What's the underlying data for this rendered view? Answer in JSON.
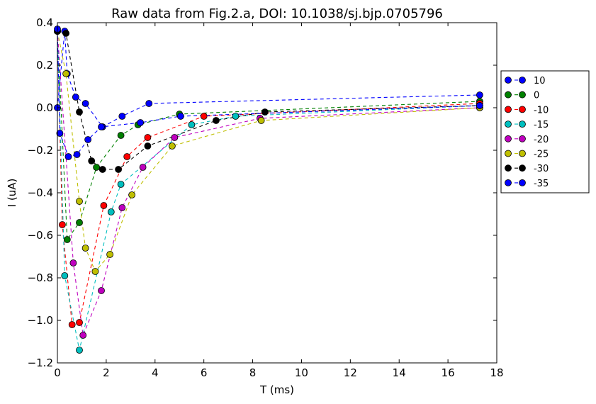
{
  "chart_data": {
    "type": "line",
    "title": "Raw data from Fig.2.a, DOI: 10.1038/sj.bjp.0705796",
    "xlabel": "T (ms)",
    "ylabel": "I (uA)",
    "xlim": [
      0,
      18
    ],
    "ylim": [
      -1.2,
      0.4
    ],
    "xticks": [
      0,
      2,
      4,
      6,
      8,
      10,
      12,
      14,
      16,
      18
    ],
    "yticks": [
      0.4,
      0.2,
      0.0,
      -0.2,
      -0.4,
      -0.6,
      -0.8,
      -1.0,
      -1.2
    ],
    "xtick_labels": [
      "0",
      "2",
      "4",
      "6",
      "8",
      "10",
      "12",
      "14",
      "16",
      "18"
    ],
    "ytick_labels": [
      "0.4",
      "0.2",
      "0.0",
      "−0.2",
      "−0.4",
      "−0.6",
      "−0.8",
      "−1.0",
      "−1.2"
    ],
    "grid": false,
    "legend_position": "outside-right",
    "series": [
      {
        "name": "10",
        "color": "#0000ff",
        "points": [
          [
            0.0,
            0.0
          ],
          [
            0.3,
            0.36
          ],
          [
            0.4,
            0.16
          ],
          [
            0.75,
            0.05
          ],
          [
            1.15,
            0.02
          ],
          [
            1.85,
            -0.09
          ],
          [
            2.65,
            -0.04
          ],
          [
            3.75,
            0.02
          ],
          [
            17.3,
            0.06
          ]
        ]
      },
      {
        "name": "0",
        "color": "#008000",
        "points": [
          [
            0.0,
            0.36
          ],
          [
            0.4,
            -0.62
          ],
          [
            0.9,
            -0.54
          ],
          [
            1.6,
            -0.28
          ],
          [
            2.6,
            -0.13
          ],
          [
            3.3,
            -0.08
          ],
          [
            5.0,
            -0.03
          ],
          [
            17.3,
            0.03
          ]
        ]
      },
      {
        "name": "-10",
        "color": "#ff0000",
        "points": [
          [
            0.0,
            0.36
          ],
          [
            0.2,
            -0.55
          ],
          [
            0.6,
            -1.02
          ],
          [
            0.9,
            -1.01
          ],
          [
            1.9,
            -0.46
          ],
          [
            2.85,
            -0.23
          ],
          [
            3.7,
            -0.14
          ],
          [
            6.0,
            -0.04
          ],
          [
            17.3,
            0.02
          ]
        ]
      },
      {
        "name": "-15",
        "color": "#00bfbf",
        "points": [
          [
            0.0,
            0.36
          ],
          [
            0.3,
            -0.79
          ],
          [
            0.9,
            -1.14
          ],
          [
            2.2,
            -0.49
          ],
          [
            2.6,
            -0.36
          ],
          [
            5.5,
            -0.08
          ],
          [
            7.3,
            -0.04
          ],
          [
            17.3,
            0.01
          ]
        ]
      },
      {
        "name": "-20",
        "color": "#bf00bf",
        "points": [
          [
            0.0,
            0.36
          ],
          [
            0.65,
            -0.73
          ],
          [
            1.05,
            -1.07
          ],
          [
            1.8,
            -0.86
          ],
          [
            2.65,
            -0.47
          ],
          [
            3.5,
            -0.28
          ],
          [
            4.8,
            -0.14
          ],
          [
            8.3,
            -0.05
          ],
          [
            17.3,
            0.0
          ]
        ]
      },
      {
        "name": "-25",
        "color": "#bfbf00",
        "points": [
          [
            0.0,
            0.36
          ],
          [
            0.35,
            0.16
          ],
          [
            0.9,
            -0.44
          ],
          [
            1.15,
            -0.66
          ],
          [
            1.55,
            -0.77
          ],
          [
            2.15,
            -0.69
          ],
          [
            3.05,
            -0.41
          ],
          [
            4.7,
            -0.18
          ],
          [
            8.35,
            -0.06
          ],
          [
            17.3,
            0.0
          ]
        ]
      },
      {
        "name": "-30",
        "color": "#000000",
        "points": [
          [
            0.0,
            0.36
          ],
          [
            0.35,
            0.35
          ],
          [
            0.9,
            -0.02
          ],
          [
            1.4,
            -0.25
          ],
          [
            1.85,
            -0.29
          ],
          [
            2.5,
            -0.29
          ],
          [
            3.7,
            -0.18
          ],
          [
            6.5,
            -0.06
          ],
          [
            8.5,
            -0.02
          ],
          [
            17.3,
            0.01
          ]
        ]
      },
      {
        "name": "-35",
        "color": "#0000ff",
        "points": [
          [
            0.0,
            0.37
          ],
          [
            0.1,
            -0.12
          ],
          [
            0.45,
            -0.23
          ],
          [
            0.8,
            -0.22
          ],
          [
            1.25,
            -0.15
          ],
          [
            1.8,
            -0.09
          ],
          [
            3.4,
            -0.07
          ],
          [
            5.05,
            -0.04
          ],
          [
            17.3,
            0.01
          ]
        ]
      }
    ]
  }
}
